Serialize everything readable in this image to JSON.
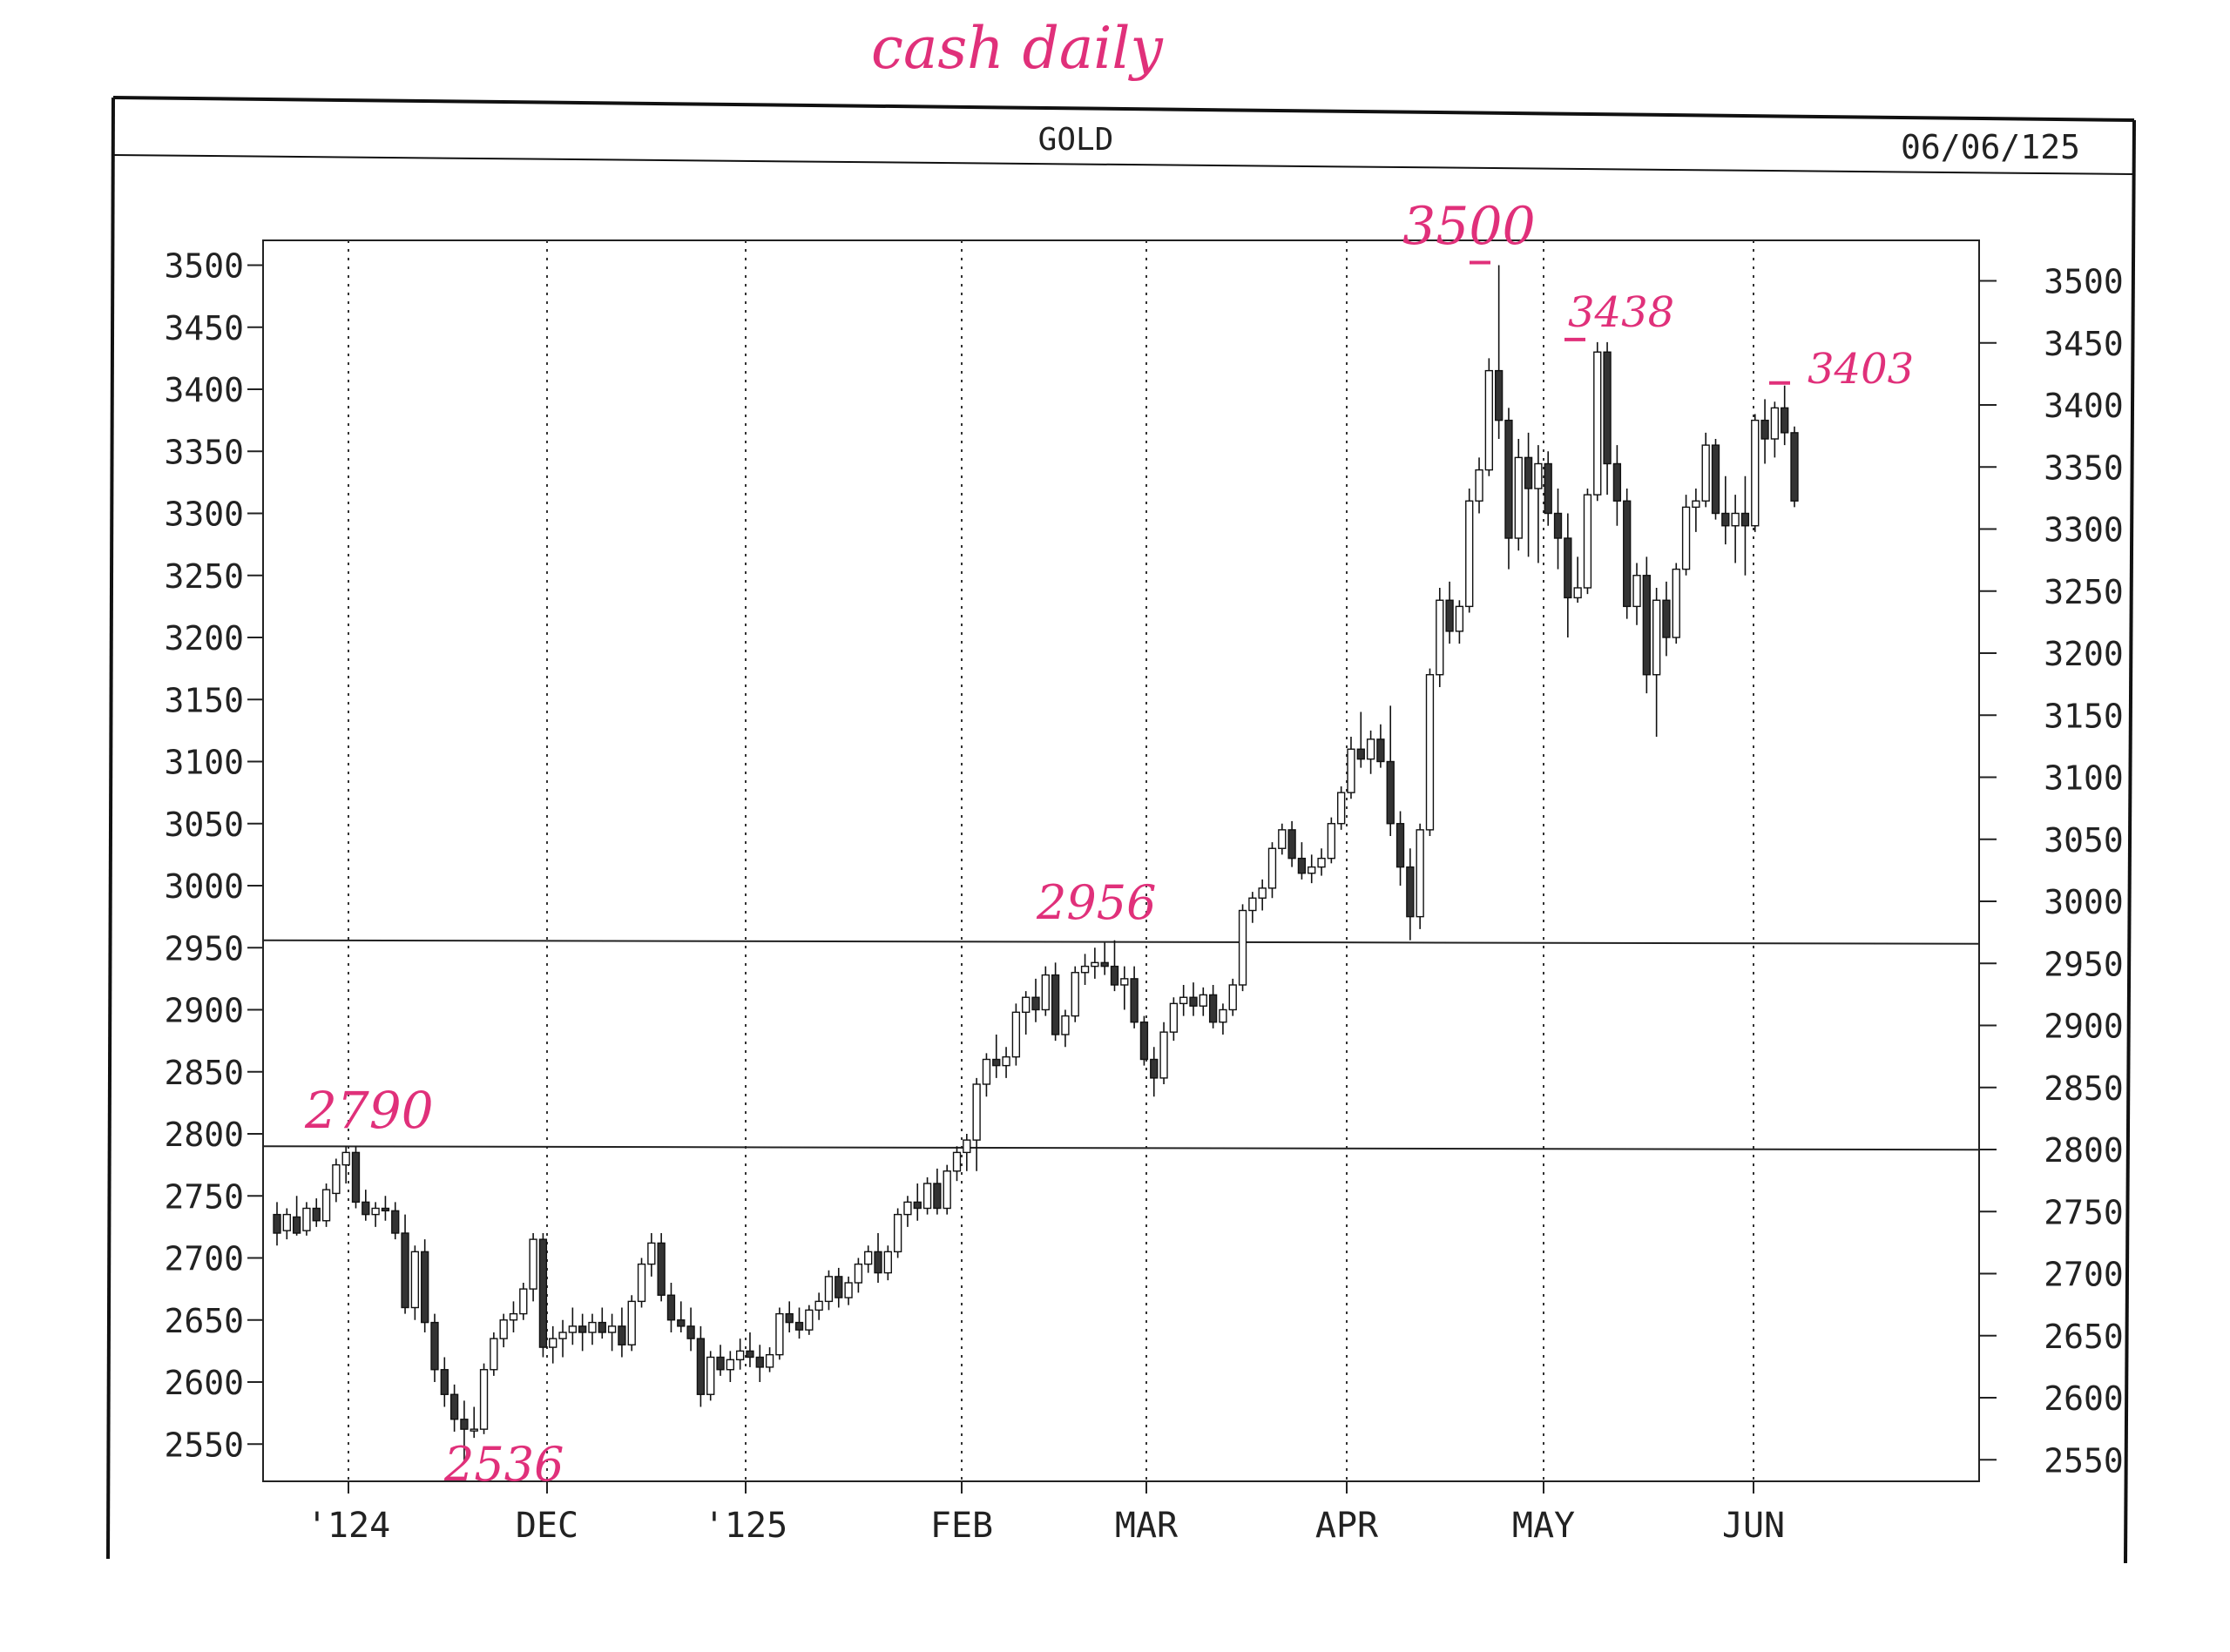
{
  "chart_data": {
    "type": "candlestick",
    "title": "GOLD",
    "date": "06/06/125",
    "handwritten_title": "cash daily",
    "ylim": [
      2520,
      3520
    ],
    "yticks": [
      2550,
      2600,
      2650,
      2700,
      2750,
      2800,
      2850,
      2900,
      2950,
      3000,
      3050,
      3100,
      3150,
      3200,
      3250,
      3300,
      3350,
      3400,
      3450,
      3500
    ],
    "ytick_labels": [
      "2550",
      "2600",
      "2650",
      "2700",
      "2750",
      "2800",
      "2850",
      "2900",
      "2950",
      "3000",
      "3050",
      "3100",
      "3150",
      "3200",
      "3250",
      "3300",
      "3350",
      "3400",
      "3450",
      "3500"
    ],
    "month_labels": [
      "'124",
      "DEC",
      "'125",
      "FEB",
      "MAR",
      "APR",
      "MAY",
      "JUN"
    ],
    "horizontal_lines": [
      2956,
      2790
    ],
    "annotations": [
      "2790",
      "2536",
      "2956",
      "3500",
      "3438",
      "3403"
    ],
    "grid": "dotted vertical lines at month boundaries",
    "legend": "none",
    "series": [
      {
        "values_ohlc": [
          [
            2735,
            2745,
            2710,
            2720
          ],
          [
            2722,
            2740,
            2715,
            2735
          ],
          [
            2733,
            2750,
            2718,
            2720
          ],
          [
            2722,
            2745,
            2718,
            2740
          ],
          [
            2740,
            2748,
            2725,
            2730
          ],
          [
            2730,
            2760,
            2725,
            2755
          ],
          [
            2752,
            2780,
            2745,
            2775
          ],
          [
            2775,
            2790,
            2760,
            2785
          ],
          [
            2785,
            2790,
            2740,
            2745
          ],
          [
            2745,
            2755,
            2730,
            2735
          ],
          [
            2735,
            2745,
            2725,
            2740
          ],
          [
            2740,
            2750,
            2730,
            2738
          ],
          [
            2738,
            2745,
            2715,
            2720
          ],
          [
            2720,
            2735,
            2655,
            2660
          ],
          [
            2660,
            2710,
            2650,
            2705
          ],
          [
            2705,
            2715,
            2640,
            2648
          ],
          [
            2648,
            2655,
            2600,
            2610
          ],
          [
            2610,
            2620,
            2580,
            2590
          ],
          [
            2590,
            2598,
            2560,
            2570
          ],
          [
            2570,
            2585,
            2536,
            2562
          ],
          [
            2562,
            2580,
            2555,
            2562
          ],
          [
            2562,
            2615,
            2558,
            2610
          ],
          [
            2610,
            2640,
            2605,
            2635
          ],
          [
            2635,
            2655,
            2628,
            2650
          ],
          [
            2650,
            2665,
            2640,
            2655
          ],
          [
            2655,
            2680,
            2650,
            2675
          ],
          [
            2675,
            2720,
            2665,
            2715
          ],
          [
            2715,
            2720,
            2620,
            2628
          ],
          [
            2628,
            2645,
            2615,
            2635
          ],
          [
            2635,
            2650,
            2620,
            2640
          ],
          [
            2640,
            2660,
            2630,
            2645
          ],
          [
            2645,
            2655,
            2625,
            2640
          ],
          [
            2640,
            2655,
            2630,
            2648
          ],
          [
            2648,
            2660,
            2635,
            2640
          ],
          [
            2640,
            2655,
            2625,
            2645
          ],
          [
            2645,
            2660,
            2620,
            2630
          ],
          [
            2630,
            2670,
            2625,
            2665
          ],
          [
            2665,
            2700,
            2660,
            2695
          ],
          [
            2695,
            2720,
            2685,
            2712
          ],
          [
            2712,
            2720,
            2665,
            2670
          ],
          [
            2670,
            2680,
            2640,
            2650
          ],
          [
            2650,
            2665,
            2640,
            2645
          ],
          [
            2645,
            2660,
            2625,
            2635
          ],
          [
            2635,
            2645,
            2580,
            2590
          ],
          [
            2590,
            2625,
            2585,
            2620
          ],
          [
            2620,
            2630,
            2605,
            2610
          ],
          [
            2610,
            2625,
            2600,
            2618
          ],
          [
            2618,
            2635,
            2610,
            2625
          ],
          [
            2625,
            2640,
            2612,
            2620
          ],
          [
            2620,
            2630,
            2600,
            2612
          ],
          [
            2612,
            2628,
            2608,
            2622
          ],
          [
            2622,
            2660,
            2618,
            2655
          ],
          [
            2655,
            2665,
            2640,
            2648
          ],
          [
            2648,
            2660,
            2635,
            2642
          ],
          [
            2642,
            2662,
            2638,
            2658
          ],
          [
            2658,
            2672,
            2650,
            2665
          ],
          [
            2665,
            2690,
            2658,
            2685
          ],
          [
            2685,
            2692,
            2660,
            2668
          ],
          [
            2668,
            2685,
            2662,
            2680
          ],
          [
            2680,
            2700,
            2672,
            2695
          ],
          [
            2695,
            2710,
            2688,
            2705
          ],
          [
            2705,
            2720,
            2680,
            2688
          ],
          [
            2688,
            2710,
            2682,
            2705
          ],
          [
            2705,
            2740,
            2700,
            2735
          ],
          [
            2735,
            2750,
            2725,
            2745
          ],
          [
            2745,
            2760,
            2730,
            2740
          ],
          [
            2740,
            2765,
            2735,
            2760
          ],
          [
            2760,
            2772,
            2735,
            2740
          ],
          [
            2740,
            2775,
            2735,
            2770
          ],
          [
            2770,
            2790,
            2762,
            2785
          ],
          [
            2785,
            2800,
            2770,
            2795
          ],
          [
            2795,
            2845,
            2770,
            2840
          ],
          [
            2840,
            2865,
            2830,
            2860
          ],
          [
            2860,
            2880,
            2845,
            2855
          ],
          [
            2855,
            2870,
            2845,
            2862
          ],
          [
            2862,
            2905,
            2855,
            2898
          ],
          [
            2898,
            2915,
            2880,
            2910
          ],
          [
            2910,
            2925,
            2890,
            2900
          ],
          [
            2900,
            2935,
            2895,
            2928
          ],
          [
            2928,
            2938,
            2875,
            2880
          ],
          [
            2880,
            2900,
            2870,
            2895
          ],
          [
            2895,
            2935,
            2890,
            2930
          ],
          [
            2930,
            2945,
            2920,
            2935
          ],
          [
            2935,
            2950,
            2925,
            2938
          ],
          [
            2938,
            2954,
            2928,
            2935
          ],
          [
            2935,
            2956,
            2915,
            2920
          ],
          [
            2920,
            2935,
            2900,
            2925
          ],
          [
            2925,
            2935,
            2885,
            2890
          ],
          [
            2890,
            2895,
            2855,
            2860
          ],
          [
            2860,
            2870,
            2830,
            2845
          ],
          [
            2845,
            2890,
            2840,
            2882
          ],
          [
            2882,
            2910,
            2875,
            2905
          ],
          [
            2905,
            2920,
            2895,
            2910
          ],
          [
            2910,
            2922,
            2895,
            2903
          ],
          [
            2903,
            2918,
            2895,
            2912
          ],
          [
            2912,
            2920,
            2885,
            2890
          ],
          [
            2890,
            2905,
            2880,
            2900
          ],
          [
            2900,
            2925,
            2895,
            2920
          ],
          [
            2920,
            2985,
            2915,
            2980
          ],
          [
            2980,
            2995,
            2970,
            2990
          ],
          [
            2990,
            3005,
            2980,
            2998
          ],
          [
            2998,
            3035,
            2990,
            3030
          ],
          [
            3030,
            3050,
            3025,
            3045
          ],
          [
            3045,
            3052,
            3015,
            3022
          ],
          [
            3022,
            3035,
            3005,
            3010
          ],
          [
            3010,
            3025,
            3002,
            3015
          ],
          [
            3015,
            3030,
            3008,
            3022
          ],
          [
            3022,
            3055,
            3018,
            3050
          ],
          [
            3050,
            3080,
            3045,
            3075
          ],
          [
            3075,
            3120,
            3070,
            3110
          ],
          [
            3110,
            3140,
            3095,
            3102
          ],
          [
            3102,
            3125,
            3090,
            3118
          ],
          [
            3118,
            3130,
            3095,
            3100
          ],
          [
            3100,
            3145,
            3040,
            3050
          ],
          [
            3050,
            3060,
            3000,
            3015
          ],
          [
            3015,
            3030,
            2956,
            2975
          ],
          [
            2975,
            3050,
            2965,
            3045
          ],
          [
            3045,
            3175,
            3040,
            3170
          ],
          [
            3170,
            3240,
            3160,
            3230
          ],
          [
            3230,
            3245,
            3195,
            3205
          ],
          [
            3205,
            3230,
            3195,
            3225
          ],
          [
            3225,
            3320,
            3220,
            3310
          ],
          [
            3310,
            3345,
            3300,
            3335
          ],
          [
            3335,
            3425,
            3330,
            3415
          ],
          [
            3415,
            3500,
            3360,
            3375
          ],
          [
            3375,
            3385,
            3255,
            3280
          ],
          [
            3280,
            3360,
            3270,
            3345
          ],
          [
            3345,
            3365,
            3265,
            3320
          ],
          [
            3320,
            3355,
            3260,
            3340
          ],
          [
            3340,
            3350,
            3290,
            3300
          ],
          [
            3300,
            3320,
            3255,
            3280
          ],
          [
            3280,
            3300,
            3200,
            3232
          ],
          [
            3232,
            3265,
            3228,
            3240
          ],
          [
            3240,
            3320,
            3235,
            3315
          ],
          [
            3315,
            3438,
            3310,
            3430
          ],
          [
            3430,
            3438,
            3315,
            3340
          ],
          [
            3340,
            3355,
            3290,
            3310
          ],
          [
            3310,
            3320,
            3215,
            3225
          ],
          [
            3225,
            3260,
            3210,
            3250
          ],
          [
            3250,
            3265,
            3155,
            3170
          ],
          [
            3170,
            3240,
            3120,
            3230
          ],
          [
            3230,
            3245,
            3185,
            3200
          ],
          [
            3200,
            3260,
            3195,
            3255
          ],
          [
            3255,
            3315,
            3250,
            3305
          ],
          [
            3305,
            3320,
            3285,
            3310
          ],
          [
            3310,
            3365,
            3305,
            3355
          ],
          [
            3355,
            3360,
            3295,
            3300
          ],
          [
            3300,
            3330,
            3275,
            3290
          ],
          [
            3290,
            3315,
            3260,
            3300
          ],
          [
            3300,
            3330,
            3250,
            3290
          ],
          [
            3290,
            3380,
            3285,
            3375
          ],
          [
            3375,
            3392,
            3340,
            3360
          ],
          [
            3360,
            3390,
            3345,
            3385
          ],
          [
            3385,
            3403,
            3355,
            3365
          ],
          [
            3365,
            3370,
            3305,
            3310
          ]
        ]
      }
    ]
  }
}
